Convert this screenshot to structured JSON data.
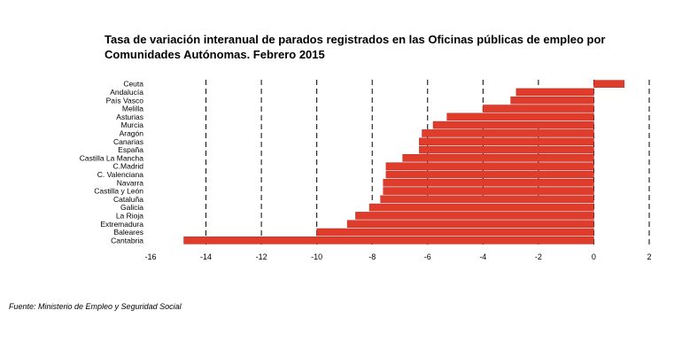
{
  "title_line1": "Tasa de variación interanual de parados registrados en las Oficinas públicas de empleo por",
  "title_line2": "Comunidades Autónomas.  Febrero 2015",
  "source": "Fuente: Ministerio de Empleo y Seguridad Social",
  "colors": {
    "bar": "#e03c2c",
    "bar_edge": "#b52a1e",
    "grid": "#000000"
  },
  "chart_data": {
    "type": "bar",
    "orientation": "horizontal",
    "title": "Tasa de variación interanual de parados registrados en las Oficinas públicas de empleo por Comunidades Autónomas.  Febrero 2015",
    "xlabel": "",
    "ylabel": "",
    "xlim": [
      -16,
      2
    ],
    "ticks": [
      -16,
      -14,
      -12,
      -10,
      -8,
      -6,
      -4,
      -2,
      0,
      2
    ],
    "grid": "vertical dashed",
    "legend": "none",
    "categories": [
      "Ceuta",
      "Andalucía",
      "País Vasco",
      "Melilla",
      "Asturias",
      "Murcia",
      "Aragón",
      "Canarias",
      "España",
      "Castilla La Mancha",
      "C.Madrid",
      "C. Valenciana",
      "Navarra",
      "Castilla y León",
      "Cataluña",
      "Galicia",
      "La Rioja",
      "Extremadura",
      "Baleares",
      "Cantabria"
    ],
    "values": [
      1.1,
      -2.8,
      -3.0,
      -4.0,
      -5.3,
      -5.8,
      -6.2,
      -6.3,
      -6.3,
      -6.9,
      -7.5,
      -7.5,
      -7.6,
      -7.6,
      -7.7,
      -8.1,
      -8.6,
      -8.9,
      -10.0,
      -14.8
    ]
  }
}
